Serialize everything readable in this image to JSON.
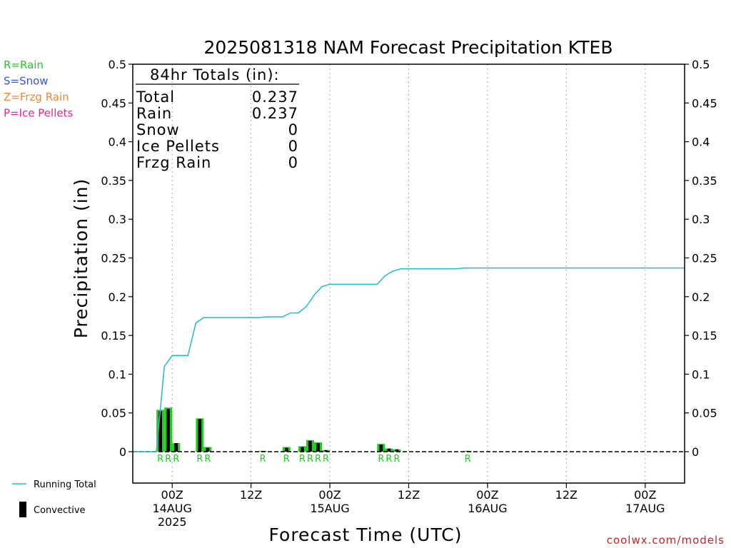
{
  "chart_data": {
    "type": "bar",
    "title": "2025081318 NAM Forecast Precipitation KTEB",
    "xlabel": "Forecast Time (UTC)",
    "ylabel": "Precipitation (in)",
    "ylim": [
      0,
      0.5
    ],
    "y_ticks": [
      "0",
      "0.05",
      "0.1",
      "0.15",
      "0.2",
      "0.25",
      "0.3",
      "0.35",
      "0.4",
      "0.45",
      "0.5"
    ],
    "x_range_hours": [
      -5,
      65
    ],
    "x_ticks": [
      {
        "hour": 0,
        "lines": [
          "00Z",
          "14AUG",
          "2025"
        ]
      },
      {
        "hour": 10,
        "lines": [
          "12Z"
        ]
      },
      {
        "hour": 20,
        "lines": [
          "00Z",
          "15AUG"
        ]
      },
      {
        "hour": 30,
        "lines": [
          "12Z"
        ]
      },
      {
        "hour": 40,
        "lines": [
          "00Z",
          "16AUG"
        ]
      },
      {
        "hour": 50,
        "lines": [
          "12Z"
        ]
      },
      {
        "hour": 60,
        "lines": [
          "00Z",
          "17AUG"
        ]
      }
    ],
    "gridlines": "dotted vertical at x ticks",
    "legend_placement": "top-left and bottom-left",
    "totals_box": {
      "heading": "84hr Totals (in):",
      "rows": [
        {
          "label": "Total",
          "value": "0.237"
        },
        {
          "label": "Rain",
          "value": "0.237"
        },
        {
          "label": "Snow",
          "value": "0"
        },
        {
          "label": "Ice Pellets",
          "value": "0"
        },
        {
          "label": "Frzg Rain",
          "value": "0"
        }
      ]
    },
    "ptype_legend": [
      {
        "text": "R=Rain",
        "color": "#22cc22"
      },
      {
        "text": "S=Snow",
        "color": "#3355ee"
      },
      {
        "text": "Z=Frzg Rain",
        "color": "#ee8833"
      },
      {
        "text": "P=Ice Pellets",
        "color": "#ee2288"
      }
    ],
    "series_legend": [
      {
        "name": "Running Total",
        "color": "#22bbcc",
        "kind": "line"
      },
      {
        "name": "Convective",
        "color": "#000000",
        "kind": "bar"
      }
    ],
    "bars": [
      {
        "hour": -1.5,
        "total": 0.054,
        "convective": 0.052,
        "ptype": "R"
      },
      {
        "hour": -0.5,
        "total": 0.057,
        "convective": 0.055,
        "ptype": "R"
      },
      {
        "hour": 0.5,
        "total": 0.011,
        "convective": 0.011,
        "ptype": "R"
      },
      {
        "hour": 3.5,
        "total": 0.043,
        "convective": 0.042,
        "ptype": "R"
      },
      {
        "hour": 4.5,
        "total": 0.006,
        "convective": 0.005,
        "ptype": "R"
      },
      {
        "hour": 11.5,
        "total": 0.001,
        "convective": 0.001,
        "ptype": "R"
      },
      {
        "hour": 14.5,
        "total": 0.006,
        "convective": 0.005,
        "ptype": "R"
      },
      {
        "hour": 16.5,
        "total": 0.007,
        "convective": 0.006,
        "ptype": "R"
      },
      {
        "hour": 17.5,
        "total": 0.015,
        "convective": 0.014,
        "ptype": "R"
      },
      {
        "hour": 18.5,
        "total": 0.012,
        "convective": 0.011,
        "ptype": "R"
      },
      {
        "hour": 19.5,
        "total": 0.002,
        "convective": 0.002,
        "ptype": "R"
      },
      {
        "hour": 26.5,
        "total": 0.01,
        "convective": 0.009,
        "ptype": "R"
      },
      {
        "hour": 27.5,
        "total": 0.004,
        "convective": 0.004,
        "ptype": "R"
      },
      {
        "hour": 28.5,
        "total": 0.003,
        "convective": 0.003,
        "ptype": "R"
      },
      {
        "hour": 37.5,
        "total": 0.001,
        "convective": 0.001,
        "ptype": "R"
      }
    ],
    "running_total": {
      "name": "Running Total",
      "x": [
        -5,
        -2,
        -1,
        0,
        2,
        3,
        4,
        11,
        12,
        14,
        15,
        16,
        17,
        18,
        19,
        20,
        25,
        26,
        27,
        28,
        29,
        36,
        37,
        38,
        65
      ],
      "y": [
        0,
        0,
        0.11,
        0.124,
        0.124,
        0.166,
        0.173,
        0.173,
        0.174,
        0.174,
        0.179,
        0.179,
        0.187,
        0.202,
        0.213,
        0.216,
        0.216,
        0.216,
        0.227,
        0.233,
        0.236,
        0.236,
        0.237,
        0.237,
        0.237
      ]
    },
    "zero_line": "dashed"
  },
  "watermark": "coolwx.com/models"
}
